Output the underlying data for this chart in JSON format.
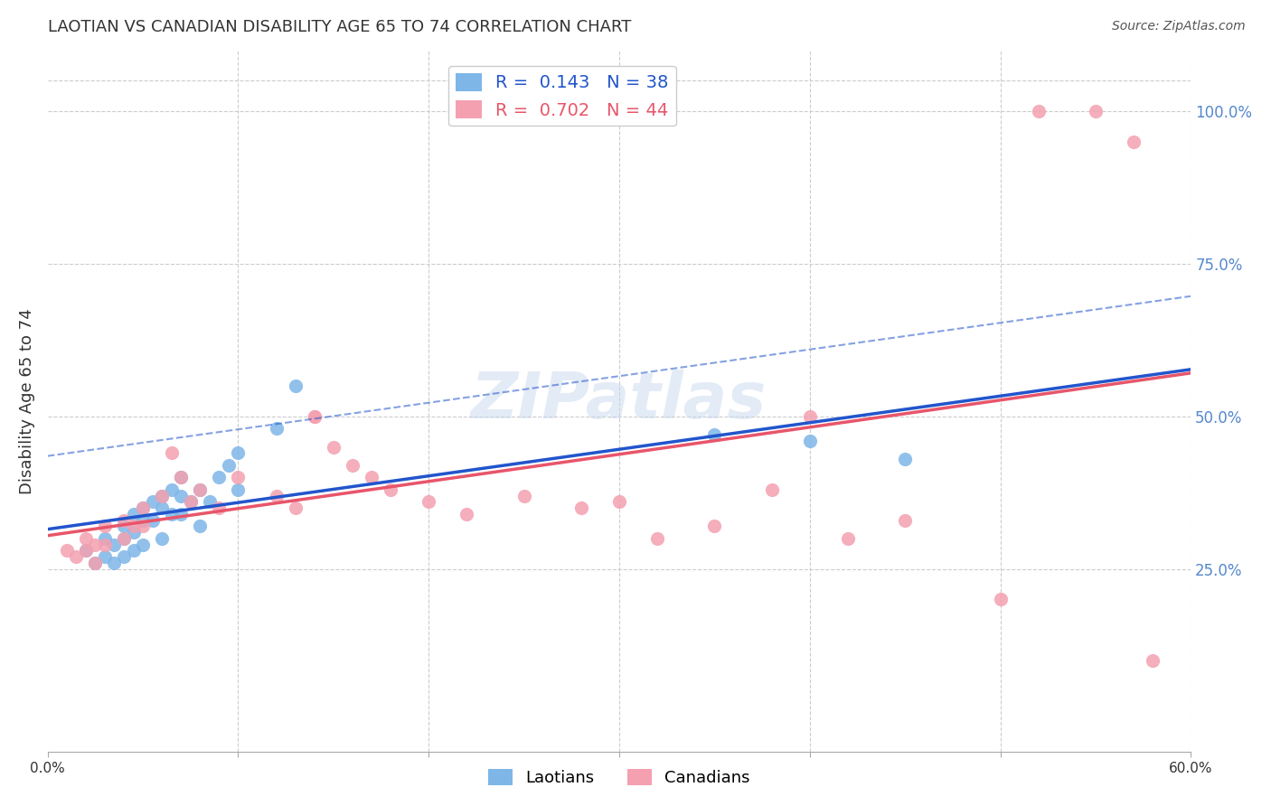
{
  "title": "LAOTIAN VS CANADIAN DISABILITY AGE 65 TO 74 CORRELATION CHART",
  "source": "Source: ZipAtlas.com",
  "ylabel": "Disability Age 65 to 74",
  "xlim": [
    0.0,
    0.6
  ],
  "ylim": [
    -0.05,
    1.1
  ],
  "xticks": [
    0.0,
    0.1,
    0.2,
    0.3,
    0.4,
    0.5,
    0.6
  ],
  "xticklabels": [
    "0.0%",
    "",
    "",
    "",
    "",
    "",
    "60.0%"
  ],
  "yticks_right": [
    0.25,
    0.5,
    0.75,
    1.0
  ],
  "ytick_labels_right": [
    "25.0%",
    "50.0%",
    "75.0%",
    "100.0%"
  ],
  "grid_color": "#cccccc",
  "background_color": "#ffffff",
  "watermark": "ZIPatlas",
  "laotian_color": "#7eb6e8",
  "canadian_color": "#f4a0b0",
  "laotian_line_color": "#2255cc",
  "canadian_line_color": "#e8556a",
  "R_laotian": 0.143,
  "N_laotian": 38,
  "R_canadian": 0.702,
  "N_canadian": 44,
  "laotian_x": [
    0.02,
    0.025,
    0.03,
    0.03,
    0.035,
    0.035,
    0.04,
    0.04,
    0.04,
    0.045,
    0.045,
    0.045,
    0.05,
    0.05,
    0.05,
    0.055,
    0.055,
    0.06,
    0.06,
    0.06,
    0.065,
    0.065,
    0.07,
    0.07,
    0.07,
    0.075,
    0.08,
    0.08,
    0.085,
    0.09,
    0.095,
    0.1,
    0.1,
    0.12,
    0.13,
    0.35,
    0.4,
    0.45
  ],
  "laotian_y": [
    0.28,
    0.26,
    0.3,
    0.27,
    0.29,
    0.26,
    0.32,
    0.3,
    0.27,
    0.34,
    0.31,
    0.28,
    0.35,
    0.33,
    0.29,
    0.36,
    0.33,
    0.37,
    0.35,
    0.3,
    0.38,
    0.34,
    0.4,
    0.37,
    0.34,
    0.36,
    0.38,
    0.32,
    0.36,
    0.4,
    0.42,
    0.44,
    0.38,
    0.48,
    0.55,
    0.47,
    0.46,
    0.43
  ],
  "canadian_x": [
    0.01,
    0.015,
    0.02,
    0.02,
    0.025,
    0.025,
    0.03,
    0.03,
    0.04,
    0.04,
    0.045,
    0.05,
    0.05,
    0.06,
    0.065,
    0.07,
    0.075,
    0.08,
    0.09,
    0.1,
    0.12,
    0.13,
    0.14,
    0.14,
    0.15,
    0.16,
    0.17,
    0.18,
    0.2,
    0.22,
    0.25,
    0.28,
    0.3,
    0.32,
    0.35,
    0.38,
    0.4,
    0.42,
    0.45,
    0.5,
    0.52,
    0.55,
    0.57,
    0.58
  ],
  "canadian_y": [
    0.28,
    0.27,
    0.3,
    0.28,
    0.29,
    0.26,
    0.32,
    0.29,
    0.33,
    0.3,
    0.32,
    0.35,
    0.32,
    0.37,
    0.44,
    0.4,
    0.36,
    0.38,
    0.35,
    0.4,
    0.37,
    0.35,
    0.5,
    0.5,
    0.45,
    0.42,
    0.4,
    0.38,
    0.36,
    0.34,
    0.37,
    0.35,
    0.36,
    0.3,
    0.32,
    0.38,
    0.5,
    0.3,
    0.33,
    0.2,
    1.0,
    1.0,
    0.95,
    0.1
  ]
}
